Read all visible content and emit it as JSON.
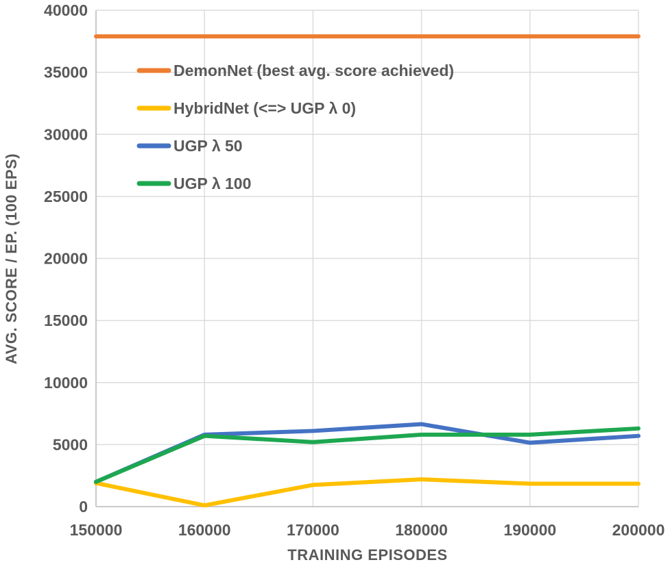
{
  "chart_data": {
    "type": "line",
    "title": "",
    "xlabel": "TRAINING EPISODES",
    "ylabel": "AVG. SCORE / EP. (100 EPS)",
    "x": [
      150000,
      160000,
      170000,
      180000,
      190000,
      200000
    ],
    "x_tick_labels": [
      "150000",
      "160000",
      "170000",
      "180000",
      "190000",
      "200000"
    ],
    "y_ticks": [
      0,
      5000,
      10000,
      15000,
      20000,
      25000,
      30000,
      35000,
      40000
    ],
    "y_tick_labels": [
      "0",
      "5000",
      "10000",
      "15000",
      "20000",
      "25000",
      "30000",
      "35000",
      "40000"
    ],
    "xlim": [
      150000,
      200000
    ],
    "ylim": [
      0,
      40000
    ],
    "grid": true,
    "legend_position": "inside-top-left",
    "series": [
      {
        "name": "DemonNet (best avg. score achieved)",
        "color": "#ED7D31",
        "values": [
          37900,
          37900,
          37900,
          37900,
          37900,
          37900
        ]
      },
      {
        "name": "HybridNet (<=> UGP λ 0)",
        "color": "#FFC000",
        "values": [
          1900,
          100,
          1750,
          2200,
          1850,
          1850
        ]
      },
      {
        "name": "UGP λ 50",
        "color": "#4472C4",
        "values": [
          2000,
          5800,
          6100,
          6650,
          5150,
          5700
        ]
      },
      {
        "name": "UGP λ 100",
        "color": "#1DA750",
        "values": [
          2000,
          5700,
          5200,
          5800,
          5800,
          6300
        ]
      }
    ],
    "colors": {
      "text": "#595959",
      "gridline": "#DCDCDC",
      "axis_line": "#C9C9C9",
      "background": "#FFFFFF"
    }
  }
}
